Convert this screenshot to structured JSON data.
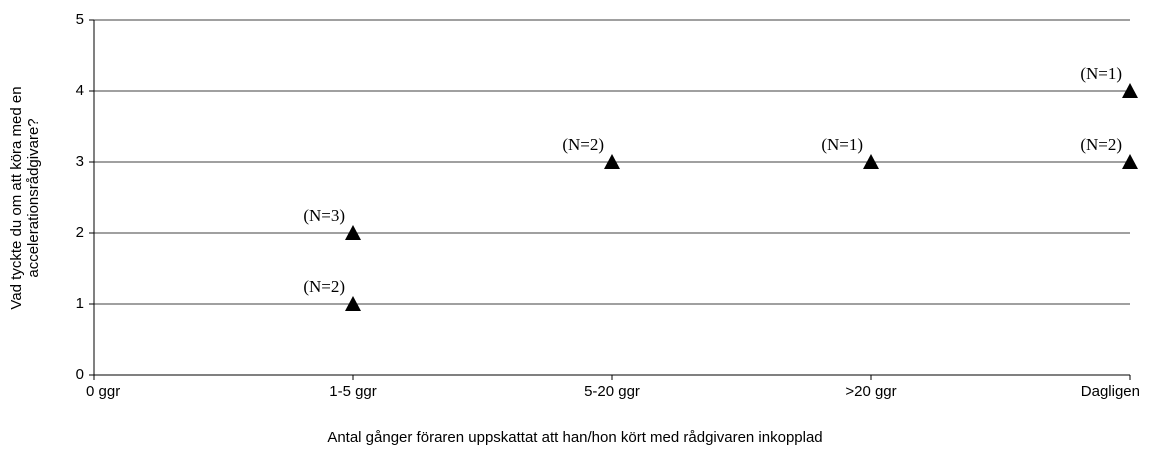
{
  "chart_data": {
    "type": "scatter",
    "xlabel": "Antal gånger föraren uppskattat att han/hon kört med rådgivaren inkopplad",
    "ylabel": [
      "Vad tyckte du om att köra med en",
      "accelerationsrådgivare?"
    ],
    "categories": [
      "0 ggr",
      "1-5 ggr",
      "5-20 ggr",
      ">20 ggr",
      "Dagligen"
    ],
    "series": [
      {
        "color": "#000000",
        "values": [
          null,
          2,
          3,
          3,
          4
        ],
        "annotations": [
          null,
          "(N=3)",
          "(N=2)",
          "(N=1)",
          "(N=1)"
        ]
      },
      {
        "color": "#000000",
        "values": [
          null,
          1,
          null,
          null,
          3
        ],
        "annotations": [
          null,
          "(N=2)",
          null,
          null,
          "(N=2)"
        ]
      }
    ],
    "ylim": [
      0,
      5
    ],
    "yticks": [
      0,
      1,
      2,
      3,
      4,
      5
    ],
    "grid": true,
    "marker": "triangle"
  }
}
